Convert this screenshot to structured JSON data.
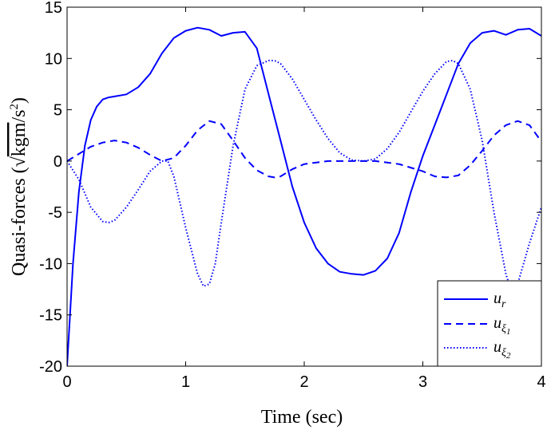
{
  "chart_data": {
    "type": "line",
    "title": "",
    "xlabel": "Time (sec)",
    "ylabel": "Quasi-forces (√kgm/s²)",
    "ylabel_prefix": "Quasi-forces (",
    "ylabel_radicand": "kgm",
    "ylabel_tail": "/s",
    "ylabel_power": "2",
    "ylabel_close": ")",
    "xlim": [
      0,
      4
    ],
    "ylim": [
      -20,
      15
    ],
    "xticks": [
      0,
      1,
      2,
      3,
      4
    ],
    "xtick_labels": [
      "0",
      "1",
      "2",
      "3",
      "4"
    ],
    "yticks": [
      15,
      10,
      5,
      0,
      -5,
      -10,
      -15,
      -20
    ],
    "ytick_labels": [
      "15",
      "10",
      "5",
      "0",
      "-5",
      "-10",
      "-15",
      "-20"
    ],
    "grid": false,
    "legend_position": "bottom-right",
    "color": "#0000ff",
    "series": [
      {
        "name": "u_r",
        "legend_base": "u",
        "legend_sub": "r",
        "legend_subsub": "",
        "style": "solid",
        "x": [
          0,
          0.05,
          0.1,
          0.15,
          0.2,
          0.25,
          0.3,
          0.35,
          0.4,
          0.5,
          0.6,
          0.7,
          0.8,
          0.9,
          1.0,
          1.1,
          1.2,
          1.3,
          1.4,
          1.5,
          1.6,
          1.7,
          1.8,
          1.9,
          2.0,
          2.1,
          2.2,
          2.3,
          2.4,
          2.5,
          2.6,
          2.7,
          2.8,
          2.9,
          3.0,
          3.1,
          3.2,
          3.3,
          3.4,
          3.5,
          3.6,
          3.7,
          3.8,
          3.9,
          4.0
        ],
        "y": [
          -20,
          -10,
          -3,
          1.5,
          4,
          5.3,
          6,
          6.2,
          6.3,
          6.5,
          7.2,
          8.5,
          10.5,
          12,
          12.7,
          13,
          12.8,
          12.2,
          12.5,
          12.6,
          11,
          6.5,
          2,
          -2.5,
          -6,
          -8.5,
          -10,
          -10.8,
          -11,
          -11.1,
          -10.7,
          -9.5,
          -7,
          -3,
          0.5,
          3.5,
          6.5,
          9.5,
          11.5,
          12.5,
          12.7,
          12.3,
          12.8,
          12.9,
          12.2
        ]
      },
      {
        "name": "u_ξ1",
        "legend_base": "u",
        "legend_sub": "ξ",
        "legend_subsub": "1",
        "style": "dashed",
        "x": [
          0,
          0.1,
          0.2,
          0.3,
          0.4,
          0.5,
          0.6,
          0.7,
          0.8,
          0.9,
          1.0,
          1.1,
          1.2,
          1.3,
          1.4,
          1.5,
          1.6,
          1.7,
          1.75,
          1.8,
          1.9,
          2.0,
          2.2,
          2.4,
          2.5,
          2.6,
          2.8,
          3.0,
          3.1,
          3.2,
          3.3,
          3.4,
          3.5,
          3.6,
          3.7,
          3.8,
          3.9,
          4.0
        ],
        "y": [
          0,
          0.7,
          1.4,
          1.8,
          2.0,
          1.8,
          1.3,
          0.6,
          0.0,
          0.3,
          1.5,
          3.0,
          3.9,
          3.6,
          2.0,
          0.3,
          -0.9,
          -1.5,
          -1.6,
          -1.5,
          -0.8,
          -0.3,
          0.0,
          0.0,
          0.0,
          0.0,
          -0.3,
          -1.0,
          -1.5,
          -1.6,
          -1.4,
          -0.4,
          1.0,
          2.5,
          3.5,
          3.9,
          3.5,
          1.9
        ]
      },
      {
        "name": "u_ξ2",
        "legend_base": "u",
        "legend_sub": "ξ",
        "legend_subsub": "2",
        "style": "dotted",
        "x": [
          0,
          0.1,
          0.2,
          0.3,
          0.35,
          0.4,
          0.5,
          0.6,
          0.7,
          0.8,
          0.85,
          0.9,
          1.0,
          1.1,
          1.15,
          1.2,
          1.25,
          1.3,
          1.4,
          1.5,
          1.6,
          1.7,
          1.75,
          1.8,
          1.9,
          2.0,
          2.1,
          2.2,
          2.3,
          2.4,
          2.5,
          2.6,
          2.7,
          2.8,
          2.9,
          3.0,
          3.1,
          3.2,
          3.25,
          3.3,
          3.4,
          3.5,
          3.6,
          3.7,
          3.75,
          3.8,
          3.9,
          4.0
        ],
        "y": [
          0,
          -1.8,
          -4.5,
          -5.9,
          -6.0,
          -5.8,
          -4.5,
          -2.8,
          -1.0,
          0.0,
          0.0,
          -1.5,
          -6.5,
          -11,
          -12.2,
          -12,
          -10,
          -6,
          1.5,
          7.0,
          9.3,
          9.8,
          9.8,
          9.5,
          8.0,
          6.0,
          4.0,
          2.2,
          0.8,
          0.1,
          0.0,
          0.2,
          1.2,
          2.8,
          4.8,
          6.8,
          8.5,
          9.7,
          9.8,
          9.5,
          7.0,
          2.0,
          -5.0,
          -11,
          -12.8,
          -12,
          -8,
          -4.5
        ]
      }
    ]
  }
}
